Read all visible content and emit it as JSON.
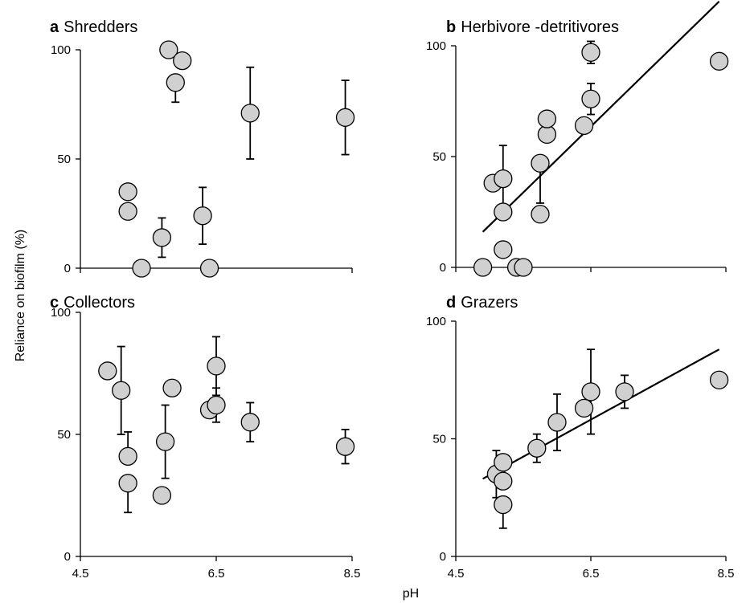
{
  "ylabel": "Reliance on biofilm (%)",
  "xlabel": "pH",
  "colors": {
    "marker_fill": "#d0d0d0",
    "marker_stroke": "#000000",
    "line": "#000000"
  },
  "chart_data": [
    {
      "type": "scatter",
      "letter": "a",
      "title": "Shredders",
      "xlim": [
        4.5,
        8.5
      ],
      "ylim": [
        0,
        100
      ],
      "yticks": [
        "0",
        "50",
        "100"
      ],
      "xticks": [],
      "trendline": null,
      "points": [
        {
          "x": 5.2,
          "y": 35,
          "err_up": 0,
          "err_down": 0
        },
        {
          "x": 5.2,
          "y": 26,
          "err_up": 0,
          "err_down": 0
        },
        {
          "x": 5.4,
          "y": 0,
          "err_up": 0,
          "err_down": 0
        },
        {
          "x": 5.7,
          "y": 14,
          "err_up": 9,
          "err_down": 9
        },
        {
          "x": 5.8,
          "y": 100,
          "err_up": 0,
          "err_down": 0
        },
        {
          "x": 5.9,
          "y": 85,
          "err_up": 0,
          "err_down": 9
        },
        {
          "x": 6.0,
          "y": 95,
          "err_up": 0,
          "err_down": 0
        },
        {
          "x": 6.3,
          "y": 24,
          "err_up": 13,
          "err_down": 13
        },
        {
          "x": 6.4,
          "y": 0,
          "err_up": 0,
          "err_down": 0
        },
        {
          "x": 7.0,
          "y": 71,
          "err_up": 21,
          "err_down": 21
        },
        {
          "x": 8.4,
          "y": 69,
          "err_up": 17,
          "err_down": 17
        }
      ]
    },
    {
      "type": "scatter",
      "letter": "b",
      "title": "Herbivore -detritivores",
      "xlim": [
        4.5,
        8.5
      ],
      "ylim": [
        0,
        100
      ],
      "yticks": [
        "0",
        "50",
        "100"
      ],
      "xticks": [],
      "trendline": {
        "x": [
          4.9,
          8.4
        ],
        "y": [
          16,
          120
        ]
      },
      "points": [
        {
          "x": 4.9,
          "y": 0,
          "err_up": 0,
          "err_down": 0
        },
        {
          "x": 5.05,
          "y": 38,
          "err_up": 0,
          "err_down": 0
        },
        {
          "x": 5.2,
          "y": 40,
          "err_up": 15,
          "err_down": 15
        },
        {
          "x": 5.2,
          "y": 25,
          "err_up": 0,
          "err_down": 0
        },
        {
          "x": 5.2,
          "y": 8,
          "err_up": 0,
          "err_down": 0
        },
        {
          "x": 5.4,
          "y": 0,
          "err_up": 0,
          "err_down": 0
        },
        {
          "x": 5.5,
          "y": 0,
          "err_up": 0,
          "err_down": 0
        },
        {
          "x": 5.75,
          "y": 47,
          "err_up": 0,
          "err_down": 18
        },
        {
          "x": 5.75,
          "y": 24,
          "err_up": 0,
          "err_down": 0
        },
        {
          "x": 5.85,
          "y": 60,
          "err_up": 0,
          "err_down": 0
        },
        {
          "x": 5.85,
          "y": 67,
          "err_up": 0,
          "err_down": 0
        },
        {
          "x": 6.4,
          "y": 64,
          "err_up": 0,
          "err_down": 0
        },
        {
          "x": 6.5,
          "y": 76,
          "err_up": 7,
          "err_down": 7
        },
        {
          "x": 6.5,
          "y": 97,
          "err_up": 5,
          "err_down": 5
        },
        {
          "x": 8.4,
          "y": 93,
          "err_up": 0,
          "err_down": 0
        }
      ]
    },
    {
      "type": "scatter",
      "letter": "c",
      "title": "Collectors",
      "xlim": [
        4.5,
        8.5
      ],
      "ylim": [
        0,
        100
      ],
      "yticks": [
        "0",
        "50",
        "100"
      ],
      "xticks": [
        "4.5",
        "6.5",
        "8.5"
      ],
      "trendline": null,
      "points": [
        {
          "x": 4.9,
          "y": 76,
          "err_up": 0,
          "err_down": 0
        },
        {
          "x": 5.1,
          "y": 68,
          "err_up": 18,
          "err_down": 18
        },
        {
          "x": 5.2,
          "y": 41,
          "err_up": 10,
          "err_down": 0
        },
        {
          "x": 5.2,
          "y": 30,
          "err_up": 0,
          "err_down": 12
        },
        {
          "x": 5.7,
          "y": 25,
          "err_up": 0,
          "err_down": 0
        },
        {
          "x": 5.75,
          "y": 47,
          "err_up": 15,
          "err_down": 15
        },
        {
          "x": 5.85,
          "y": 69,
          "err_up": 0,
          "err_down": 0
        },
        {
          "x": 6.4,
          "y": 60,
          "err_up": 0,
          "err_down": 0
        },
        {
          "x": 6.5,
          "y": 78,
          "err_up": 12,
          "err_down": 12
        },
        {
          "x": 6.5,
          "y": 62,
          "err_up": 7,
          "err_down": 7
        },
        {
          "x": 7.0,
          "y": 55,
          "err_up": 8,
          "err_down": 8
        },
        {
          "x": 8.4,
          "y": 45,
          "err_up": 7,
          "err_down": 7
        }
      ]
    },
    {
      "type": "scatter",
      "letter": "d",
      "title": "Grazers",
      "xlim": [
        4.5,
        8.5
      ],
      "ylim": [
        0,
        100
      ],
      "yticks": [
        "0",
        "50",
        "100"
      ],
      "xticks": [
        "4.5",
        "6.5",
        "8.5"
      ],
      "trendline": {
        "x": [
          4.9,
          8.4
        ],
        "y": [
          33,
          88
        ]
      },
      "points": [
        {
          "x": 5.1,
          "y": 35,
          "err_up": 10,
          "err_down": 10
        },
        {
          "x": 5.2,
          "y": 40,
          "err_up": 0,
          "err_down": 0
        },
        {
          "x": 5.2,
          "y": 32,
          "err_up": 0,
          "err_down": 0
        },
        {
          "x": 5.2,
          "y": 22,
          "err_up": 0,
          "err_down": 10
        },
        {
          "x": 5.7,
          "y": 46,
          "err_up": 6,
          "err_down": 6
        },
        {
          "x": 6.0,
          "y": 57,
          "err_up": 12,
          "err_down": 12
        },
        {
          "x": 6.4,
          "y": 63,
          "err_up": 0,
          "err_down": 0
        },
        {
          "x": 6.5,
          "y": 70,
          "err_up": 18,
          "err_down": 18
        },
        {
          "x": 7.0,
          "y": 70,
          "err_up": 7,
          "err_down": 7
        },
        {
          "x": 8.4,
          "y": 75,
          "err_up": 0,
          "err_down": 0
        }
      ]
    }
  ]
}
